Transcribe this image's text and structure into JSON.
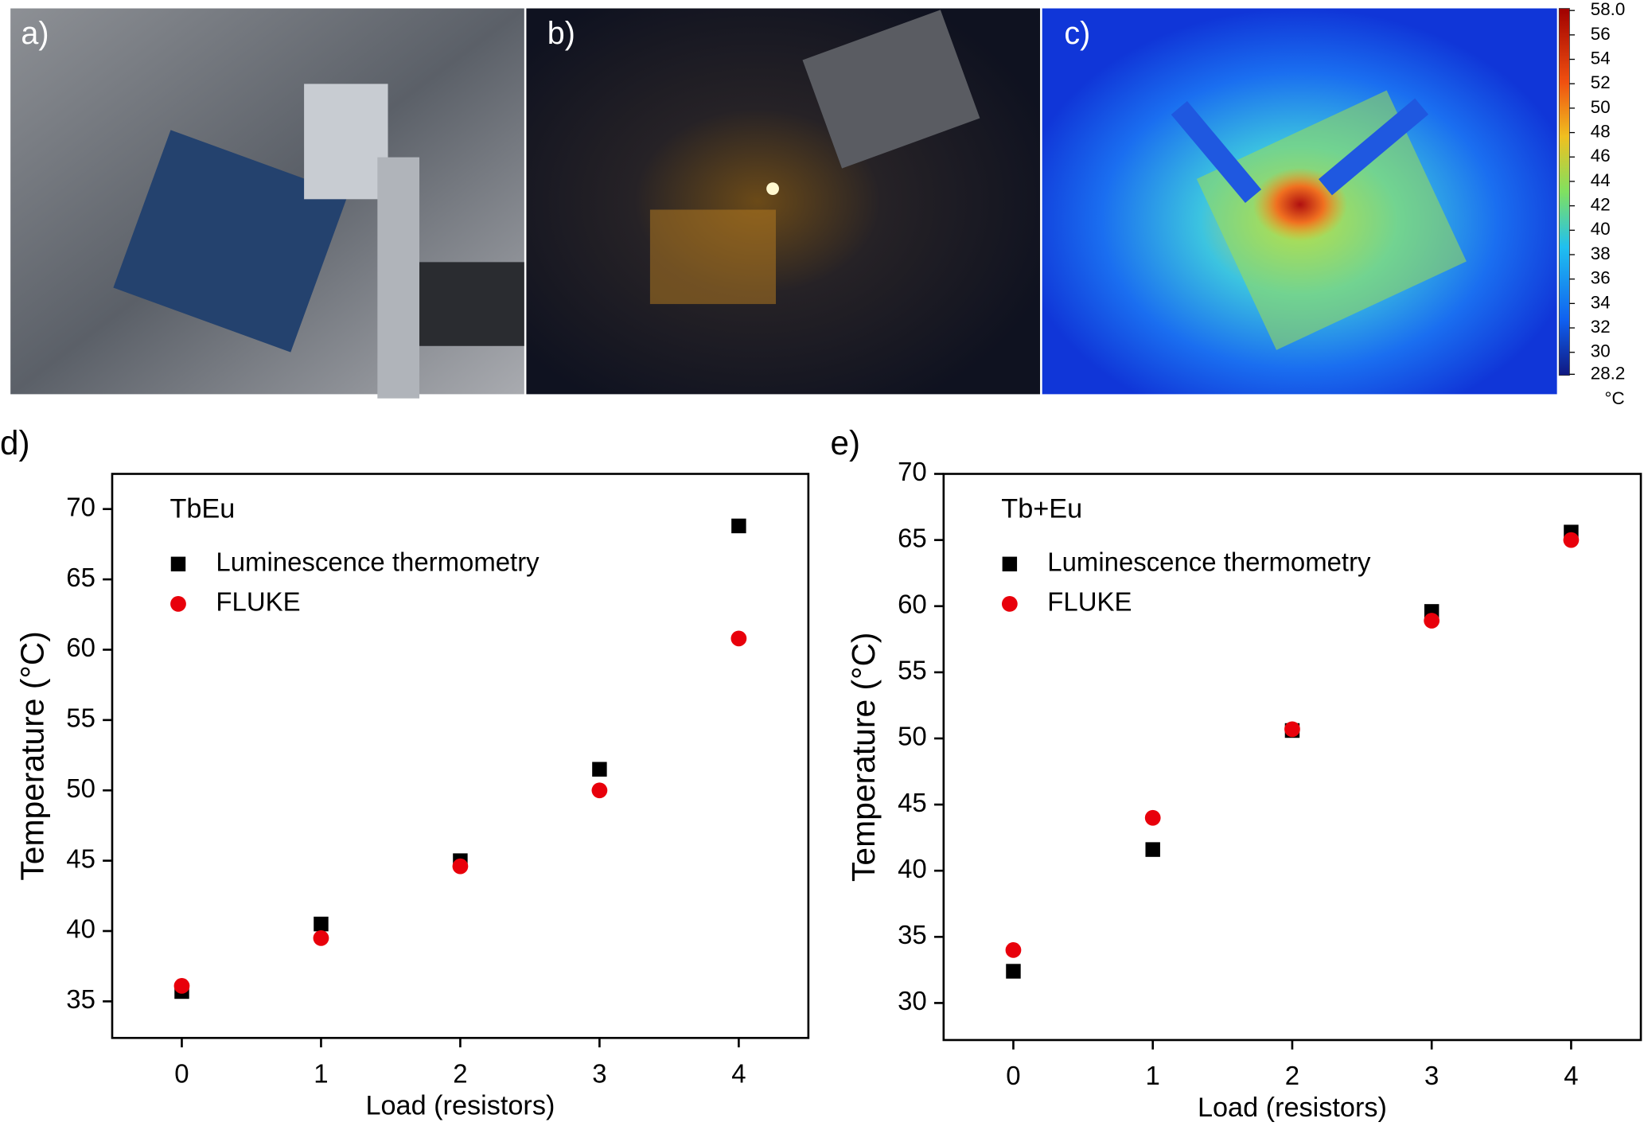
{
  "images": [
    {
      "label": "a)"
    },
    {
      "label": "b)"
    },
    {
      "label": "c)"
    }
  ],
  "colorbar": {
    "range": [
      28.2,
      58.0
    ],
    "unit": "°C",
    "ticks": [
      {
        "value": 58,
        "label": "58.0"
      },
      56,
      54,
      52,
      50,
      48,
      46,
      44,
      42,
      40,
      38,
      36,
      34,
      32,
      30,
      28.2
    ]
  },
  "chart_data": [
    {
      "type": "scatter",
      "panel": "d)",
      "title": "TbEu",
      "x_label": "Load (resistors)",
      "y_label": "Temperature (°C)",
      "x": [
        0,
        1,
        2,
        3,
        4
      ],
      "xlim": [
        -0.5,
        4.5
      ],
      "xticks": [
        0,
        1,
        2,
        3,
        4
      ],
      "ylim": [
        32.4,
        72.5
      ],
      "yticks": [
        35,
        40,
        45,
        50,
        55,
        60,
        65,
        70
      ],
      "series": [
        {
          "name": "Luminescence thermometry",
          "color": "#000000",
          "marker": "square",
          "values": [
            35.7,
            40.5,
            45.0,
            51.5,
            68.8
          ]
        },
        {
          "name": "FLUKE",
          "color": "#e8000b",
          "marker": "circle",
          "values": [
            36.1,
            39.5,
            44.6,
            50.0,
            60.8
          ]
        }
      ]
    },
    {
      "type": "scatter",
      "panel": "e)",
      "title": "Tb+Eu",
      "x_label": "Load (resistors)",
      "y_label": "Temperature (°C)",
      "x": [
        0,
        1,
        2,
        3,
        4
      ],
      "xlim": [
        -0.5,
        4.5
      ],
      "xticks": [
        0,
        1,
        2,
        3,
        4
      ],
      "ylim": [
        27.2,
        70
      ],
      "yticks": [
        30,
        35,
        40,
        45,
        50,
        55,
        60,
        65,
        70
      ],
      "series": [
        {
          "name": "Luminescence thermometry",
          "color": "#000000",
          "marker": "square",
          "values": [
            32.4,
            41.6,
            50.6,
            59.6,
            65.6
          ]
        },
        {
          "name": "FLUKE",
          "color": "#e8000b",
          "marker": "circle",
          "values": [
            34.0,
            44.0,
            50.7,
            58.9,
            65.0
          ]
        }
      ]
    }
  ]
}
